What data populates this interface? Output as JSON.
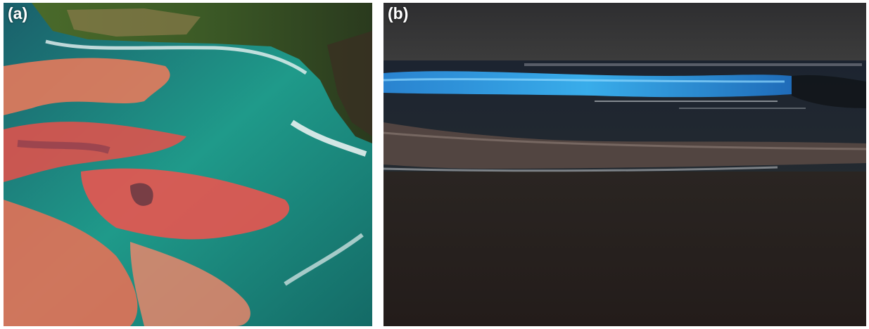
{
  "panels": [
    {
      "label": "(a)",
      "subject": "red-tide-algal-bloom-aerial"
    },
    {
      "label": "(b)",
      "subject": "bioluminescent-wave-night-beach"
    }
  ],
  "colors": {
    "bloom_red": "#e8504a",
    "bloom_orange": "#f07a5a",
    "sea_teal": "#1f9a8a",
    "glow_blue": "#2aa8f0",
    "night_sand": "#2a221f"
  }
}
